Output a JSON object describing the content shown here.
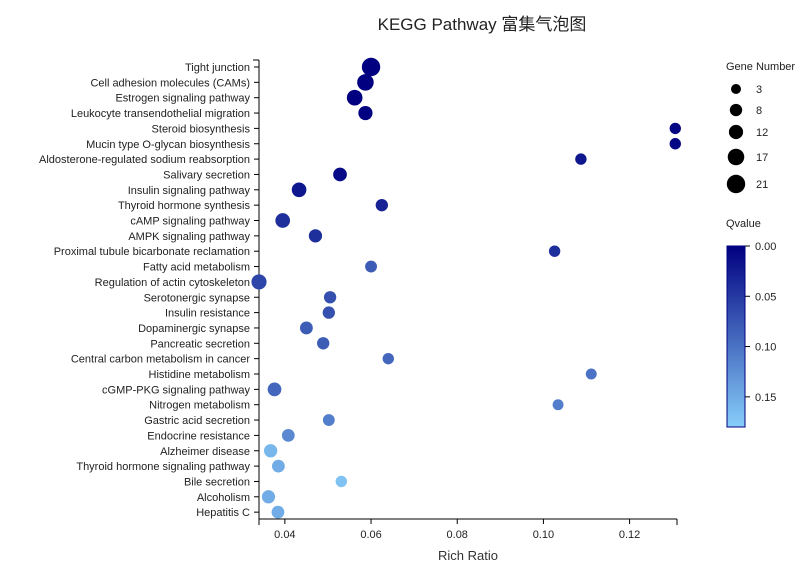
{
  "chart_data": {
    "type": "scatter",
    "title": "KEGG Pathway 富集气泡图",
    "xlabel": "Rich Ratio",
    "ylabel": "",
    "xlim": [
      0.034,
      0.131
    ],
    "xticks": [
      "0.04",
      "0.06",
      "0.08",
      "0.10",
      "0.12"
    ],
    "xtick_values": [
      0.04,
      0.06,
      0.08,
      0.1,
      0.12
    ],
    "categories": [
      "Tight junction",
      "Cell adhesion molecules (CAMs)",
      "Estrogen signaling pathway",
      "Leukocyte transendothelial migration",
      "Steroid biosynthesis",
      "Mucin type O-glycan biosynthesis",
      "Aldosterone-regulated sodium reabsorption",
      "Salivary secretion",
      "Insulin signaling pathway",
      "Thyroid hormone synthesis",
      "cAMP signaling pathway",
      "AMPK signaling pathway",
      "Proximal tubule bicarbonate reclamation",
      "Fatty acid metabolism",
      "Regulation of actin cytoskeleton",
      "Serotonergic synapse",
      "Insulin resistance",
      "Dopaminergic synapse",
      "Pancreatic secretion",
      "Central carbon metabolism in cancer",
      "Histidine metabolism",
      "cGMP-PKG signaling pathway",
      "Nitrogen metabolism",
      "Gastric acid secretion",
      "Endocrine resistance",
      "Alzheimer disease",
      "Thyroid hormone signaling pathway",
      "Bile secretion",
      "Alcoholism",
      "Hepatitis C"
    ],
    "rich_ratio": [
      0.06,
      0.0587,
      0.0562,
      0.0587,
      0.1306,
      0.1306,
      0.1087,
      0.0528,
      0.0433,
      0.0625,
      0.0395,
      0.0471,
      0.1026,
      0.06,
      0.034,
      0.0505,
      0.0502,
      0.045,
      0.0489,
      0.064,
      0.1111,
      0.0376,
      0.1034,
      0.0502,
      0.0408,
      0.0367,
      0.0385,
      0.0531,
      0.0362,
      0.0384
    ],
    "gene_number": [
      21,
      17,
      15,
      12,
      6,
      6,
      6,
      11,
      13,
      8,
      13,
      10,
      6,
      7,
      14,
      8,
      8,
      9,
      8,
      6,
      5,
      11,
      5,
      7,
      9,
      10,
      9,
      6,
      10,
      9
    ],
    "qvalue": [
      0.0,
      0.0,
      0.0,
      0.0,
      0.005,
      0.005,
      0.02,
      0.01,
      0.02,
      0.03,
      0.04,
      0.04,
      0.04,
      0.08,
      0.06,
      0.07,
      0.07,
      0.08,
      0.08,
      0.09,
      0.1,
      0.09,
      0.11,
      0.11,
      0.12,
      0.16,
      0.15,
      0.17,
      0.15,
      0.15
    ],
    "legend_size": {
      "title": "Gene Number",
      "values": [
        3,
        8,
        12,
        17,
        21
      ],
      "labels": [
        "3",
        "8",
        "12",
        "17",
        "21"
      ]
    },
    "legend_color": {
      "title": "Qvalue",
      "ticks": [
        0.0,
        0.05,
        0.1,
        0.15
      ],
      "labels": [
        "0.00",
        "0.05",
        "0.10",
        "0.15"
      ],
      "range": [
        0.0,
        0.18
      ]
    },
    "colors": {
      "low_q": "#000080",
      "high_q": "#87cefa"
    }
  }
}
